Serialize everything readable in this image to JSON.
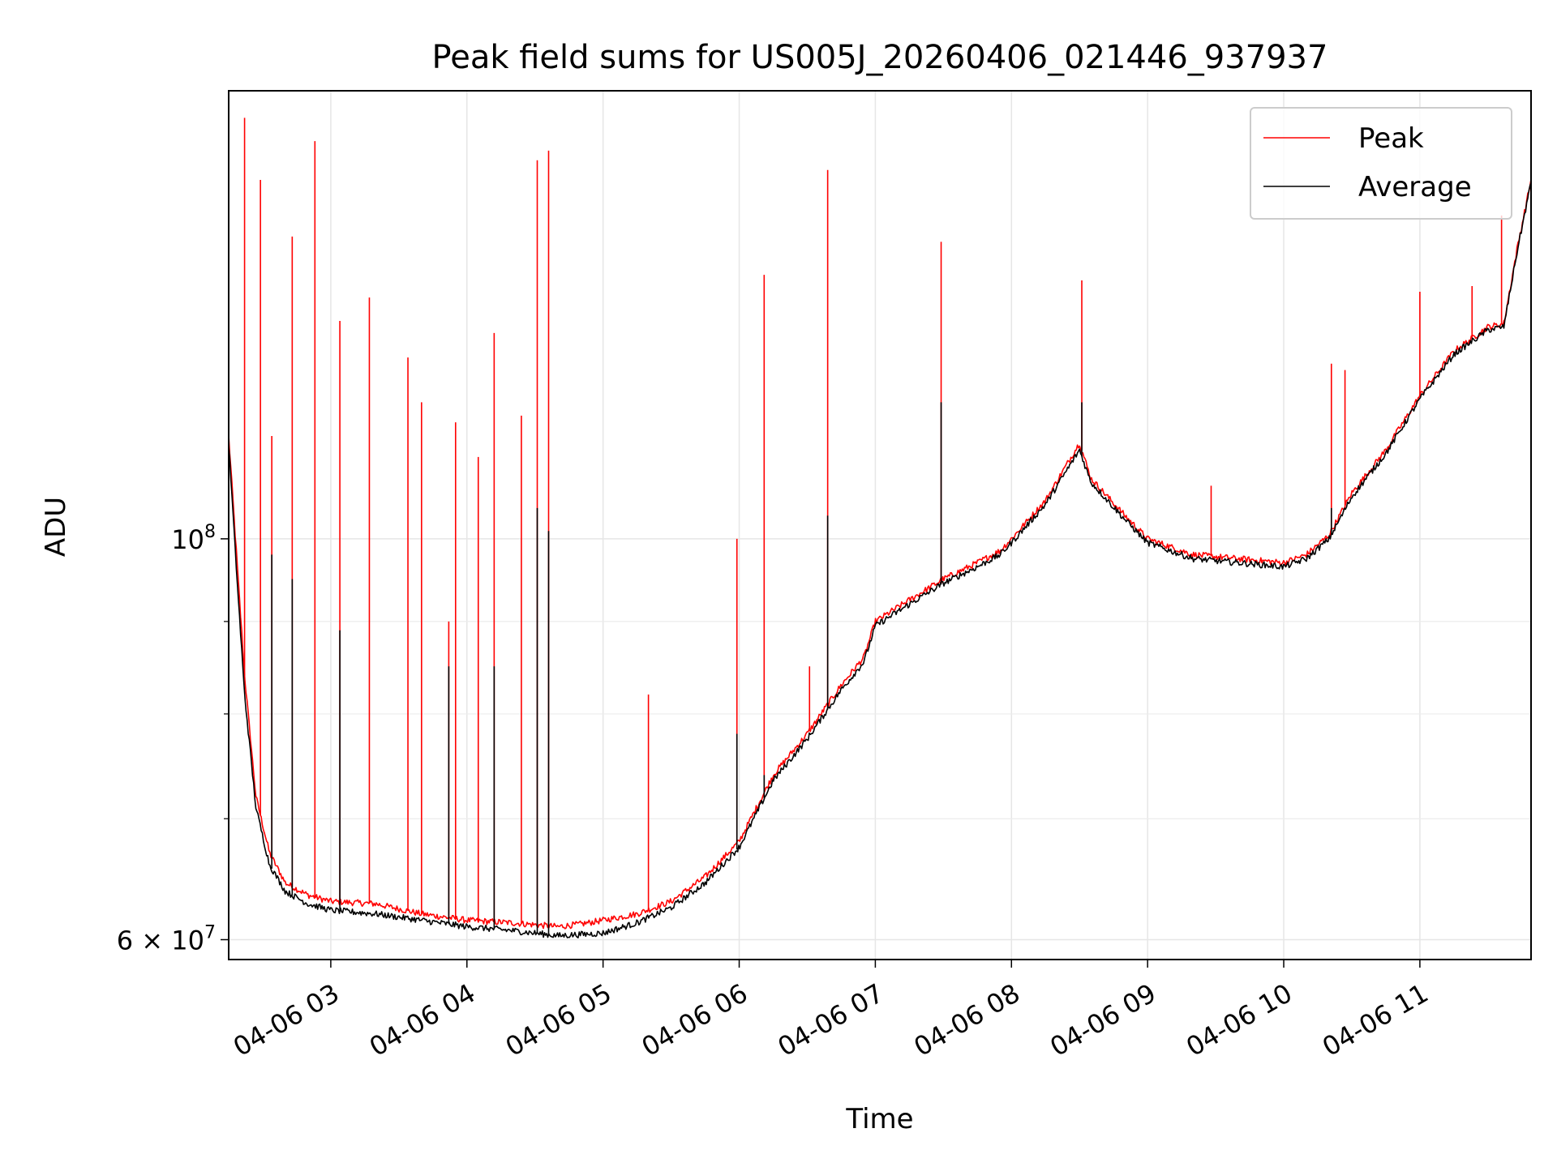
{
  "chart_data": {
    "type": "line",
    "title": "Peak field sums for US005J_20260406_021446_937937",
    "xlabel": "Time",
    "ylabel": "ADU",
    "xscale": "time",
    "yscale": "log",
    "grid": true,
    "legend_position": "top-right",
    "xlim": [
      "2026-04-06 02:15",
      "2026-04-06 11:49"
    ],
    "ylim": [
      58500000,
      177000000
    ],
    "x_ticks": [
      {
        "value": "2026-04-06 03:00",
        "label": "04-06 03"
      },
      {
        "value": "2026-04-06 04:00",
        "label": "04-06 04"
      },
      {
        "value": "2026-04-06 05:00",
        "label": "04-06 05"
      },
      {
        "value": "2026-04-06 06:00",
        "label": "04-06 06"
      },
      {
        "value": "2026-04-06 07:00",
        "label": "04-06 07"
      },
      {
        "value": "2026-04-06 08:00",
        "label": "04-06 08"
      },
      {
        "value": "2026-04-06 09:00",
        "label": "04-06 09"
      },
      {
        "value": "2026-04-06 10:00",
        "label": "04-06 10"
      },
      {
        "value": "2026-04-06 11:00",
        "label": "04-06 11"
      }
    ],
    "y_major_ticks": [
      {
        "value": 60000000,
        "base": "6 × 10",
        "exp": "7"
      },
      {
        "value": 100000000,
        "base": "10",
        "exp": "8"
      }
    ],
    "y_minor_ticks": [
      70000000,
      80000000,
      90000000,
      200000000
    ],
    "series": [
      {
        "name": "Peak",
        "color": "#ff0000",
        "x": [
          "2026-04-06 02:15",
          "2026-04-06 02:18",
          "2026-04-06 02:22",
          "2026-04-06 02:27",
          "2026-04-06 02:33",
          "2026-04-06 02:40",
          "2026-04-06 02:50",
          "2026-04-06 03:00",
          "2026-04-06 03:20",
          "2026-04-06 03:40",
          "2026-04-06 04:00",
          "2026-04-06 04:20",
          "2026-04-06 04:40",
          "2026-04-06 04:50",
          "2026-04-06 05:00",
          "2026-04-06 05:15",
          "2026-04-06 05:30",
          "2026-04-06 05:45",
          "2026-04-06 06:00",
          "2026-04-06 06:15",
          "2026-04-06 06:30",
          "2026-04-06 06:45",
          "2026-04-06 06:55",
          "2026-04-06 07:00",
          "2026-04-06 07:15",
          "2026-04-06 07:30",
          "2026-04-06 07:45",
          "2026-04-06 07:55",
          "2026-04-06 08:00",
          "2026-04-06 08:15",
          "2026-04-06 08:30",
          "2026-04-06 08:35",
          "2026-04-06 08:50",
          "2026-04-06 09:00",
          "2026-04-06 09:20",
          "2026-04-06 09:40",
          "2026-04-06 10:00",
          "2026-04-06 10:10",
          "2026-04-06 10:20",
          "2026-04-06 10:30",
          "2026-04-06 10:45",
          "2026-04-06 11:00",
          "2026-04-06 11:15",
          "2026-04-06 11:30",
          "2026-04-06 11:37",
          "2026-04-06 11:43",
          "2026-04-06 11:49"
        ],
        "y": [
          114000000,
          100000000,
          84000000,
          72000000,
          67000000,
          64500000,
          63500000,
          63000000,
          62800000,
          62000000,
          61500000,
          61300000,
          61000000,
          61200000,
          61500000,
          62000000,
          63000000,
          65000000,
          68000000,
          74000000,
          78000000,
          83000000,
          86000000,
          90000000,
          92500000,
          95000000,
          97000000,
          98500000,
          100000000,
          105000000,
          113000000,
          108000000,
          103000000,
          100000000,
          98000000,
          97500000,
          97000000,
          98000000,
          100500000,
          106000000,
          112000000,
          120000000,
          127000000,
          131000000,
          131500000,
          145000000,
          158000000
        ],
        "spikes": [
          {
            "x": "2026-04-06 02:22",
            "y": 171000000
          },
          {
            "x": "2026-04-06 02:29",
            "y": 158000000
          },
          {
            "x": "2026-04-06 02:34",
            "y": 114000000
          },
          {
            "x": "2026-04-06 02:43",
            "y": 147000000
          },
          {
            "x": "2026-04-06 02:53",
            "y": 166000000
          },
          {
            "x": "2026-04-06 03:04",
            "y": 132000000
          },
          {
            "x": "2026-04-06 03:17",
            "y": 136000000
          },
          {
            "x": "2026-04-06 03:34",
            "y": 126000000
          },
          {
            "x": "2026-04-06 03:40",
            "y": 119000000
          },
          {
            "x": "2026-04-06 03:52",
            "y": 90000000
          },
          {
            "x": "2026-04-06 03:55",
            "y": 116000000
          },
          {
            "x": "2026-04-06 04:05",
            "y": 111000000
          },
          {
            "x": "2026-04-06 04:12",
            "y": 130000000
          },
          {
            "x": "2026-04-06 04:24",
            "y": 117000000
          },
          {
            "x": "2026-04-06 04:31",
            "y": 162000000
          },
          {
            "x": "2026-04-06 04:36",
            "y": 164000000
          },
          {
            "x": "2026-04-06 05:20",
            "y": 82000000
          },
          {
            "x": "2026-04-06 05:59",
            "y": 100000000
          },
          {
            "x": "2026-04-06 06:11",
            "y": 140000000
          },
          {
            "x": "2026-04-06 06:31",
            "y": 85000000
          },
          {
            "x": "2026-04-06 06:39",
            "y": 160000000
          },
          {
            "x": "2026-04-06 07:29",
            "y": 146000000
          },
          {
            "x": "2026-04-06 08:31",
            "y": 139000000
          },
          {
            "x": "2026-04-06 09:28",
            "y": 107000000
          },
          {
            "x": "2026-04-06 10:21",
            "y": 125000000
          },
          {
            "x": "2026-04-06 10:27",
            "y": 124000000
          },
          {
            "x": "2026-04-06 11:00",
            "y": 137000000
          },
          {
            "x": "2026-04-06 11:23",
            "y": 138000000
          },
          {
            "x": "2026-04-06 11:36",
            "y": 151000000
          }
        ]
      },
      {
        "name": "Average",
        "color": "#000000",
        "x": [
          "2026-04-06 02:15",
          "2026-04-06 02:18",
          "2026-04-06 02:22",
          "2026-04-06 02:27",
          "2026-04-06 02:33",
          "2026-04-06 02:40",
          "2026-04-06 02:50",
          "2026-04-06 03:00",
          "2026-04-06 03:20",
          "2026-04-06 03:40",
          "2026-04-06 04:00",
          "2026-04-06 04:20",
          "2026-04-06 04:40",
          "2026-04-06 04:50",
          "2026-04-06 05:00",
          "2026-04-06 05:15",
          "2026-04-06 05:30",
          "2026-04-06 05:45",
          "2026-04-06 06:00",
          "2026-04-06 06:15",
          "2026-04-06 06:30",
          "2026-04-06 06:45",
          "2026-04-06 06:55",
          "2026-04-06 07:00",
          "2026-04-06 07:15",
          "2026-04-06 07:30",
          "2026-04-06 07:45",
          "2026-04-06 07:55",
          "2026-04-06 08:00",
          "2026-04-06 08:15",
          "2026-04-06 08:30",
          "2026-04-06 08:35",
          "2026-04-06 08:50",
          "2026-04-06 09:00",
          "2026-04-06 09:20",
          "2026-04-06 09:40",
          "2026-04-06 10:00",
          "2026-04-06 10:10",
          "2026-04-06 10:20",
          "2026-04-06 10:30",
          "2026-04-06 10:45",
          "2026-04-06 11:00",
          "2026-04-06 11:15",
          "2026-04-06 11:30",
          "2026-04-06 11:37",
          "2026-04-06 11:43",
          "2026-04-06 11:49"
        ],
        "y": [
          113000000,
          98000000,
          82000000,
          71000000,
          66000000,
          63800000,
          62800000,
          62300000,
          62000000,
          61500000,
          61000000,
          60700000,
          60300000,
          60400000,
          60500000,
          61300000,
          62500000,
          64500000,
          67500000,
          73500000,
          77500000,
          82500000,
          85500000,
          89500000,
          92000000,
          94500000,
          96500000,
          98000000,
          99500000,
          104500000,
          112000000,
          107500000,
          102500000,
          99500000,
          97500000,
          97000000,
          96500000,
          97500000,
          100000000,
          105500000,
          111500000,
          119500000,
          126500000,
          130500000,
          131000000,
          144500000,
          157500000
        ],
        "spikes": [
          {
            "x": "2026-04-06 02:34",
            "y": 98000000
          },
          {
            "x": "2026-04-06 02:43",
            "y": 95000000
          },
          {
            "x": "2026-04-06 03:04",
            "y": 89000000
          },
          {
            "x": "2026-04-06 03:52",
            "y": 85000000
          },
          {
            "x": "2026-04-06 04:12",
            "y": 85000000
          },
          {
            "x": "2026-04-06 04:31",
            "y": 104000000
          },
          {
            "x": "2026-04-06 04:36",
            "y": 101000000
          },
          {
            "x": "2026-04-06 05:59",
            "y": 78000000
          },
          {
            "x": "2026-04-06 06:11",
            "y": 74000000
          },
          {
            "x": "2026-04-06 06:39",
            "y": 103000000
          },
          {
            "x": "2026-04-06 07:29",
            "y": 119000000
          },
          {
            "x": "2026-04-06 08:31",
            "y": 119000000
          },
          {
            "x": "2026-04-06 10:21",
            "y": 104000000
          }
        ]
      }
    ]
  }
}
